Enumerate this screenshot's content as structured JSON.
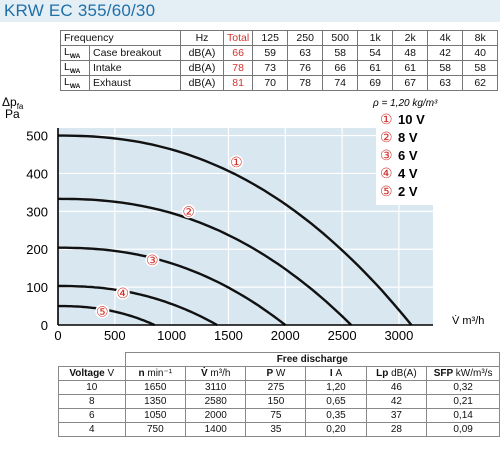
{
  "title": "KRW EC 355/60/30",
  "sound_table": {
    "freq_label": "Frequency",
    "hz_label": "Hz",
    "total_label": "Total",
    "bands": [
      "125",
      "250",
      "500",
      "1k",
      "2k",
      "4k",
      "8k"
    ],
    "lwa_symbol": "L",
    "lwa_sub": "WA",
    "rows": [
      {
        "label": "Case breakout",
        "unit": "dB(A)",
        "total": "66",
        "values": [
          "59",
          "63",
          "58",
          "54",
          "48",
          "42",
          "40"
        ]
      },
      {
        "label": "Intake",
        "unit": "dB(A)",
        "total": "78",
        "values": [
          "73",
          "76",
          "66",
          "61",
          "61",
          "58",
          "58"
        ]
      },
      {
        "label": "Exhaust",
        "unit": "dB(A)",
        "total": "81",
        "values": [
          "70",
          "78",
          "74",
          "69",
          "67",
          "63",
          "62"
        ]
      }
    ]
  },
  "chart_data": {
    "type": "line",
    "ylabel_main": "Δp",
    "ylabel_sub": "fa",
    "ylabel_unit": "Pa",
    "xlabel": "V̇ m³/h",
    "density_note": "ρ = 1,20 kg/m³",
    "xlim": [
      0,
      3300
    ],
    "ylim": [
      0,
      520
    ],
    "xticks": [
      0,
      500,
      1000,
      1500,
      2000,
      2500,
      3000
    ],
    "yticks": [
      0,
      100,
      200,
      300,
      400,
      500
    ],
    "legend": [
      {
        "marker": "①",
        "label": "10 V"
      },
      {
        "marker": "②",
        "label": "8 V"
      },
      {
        "marker": "③",
        "label": "6 V"
      },
      {
        "marker": "④",
        "label": "4 V"
      },
      {
        "marker": "⑤",
        "label": "2 V"
      }
    ],
    "series": [
      {
        "marker": "①",
        "p0": 500,
        "q0": 3110,
        "label_at": [
          1570,
          430
        ]
      },
      {
        "marker": "②",
        "p0": 333,
        "q0": 2580,
        "label_at": [
          1150,
          300
        ]
      },
      {
        "marker": "③",
        "p0": 204,
        "q0": 2000,
        "label_at": [
          830,
          172
        ]
      },
      {
        "marker": "④",
        "p0": 103,
        "q0": 1400,
        "label_at": [
          570,
          85
        ]
      },
      {
        "marker": "⑤",
        "p0": 50,
        "q0": 850,
        "label_at": [
          390,
          36
        ]
      }
    ]
  },
  "discharge_table": {
    "header": "Free discharge",
    "columns": [
      {
        "name": "Voltage",
        "unit": "V"
      },
      {
        "name": "n",
        "unit": "min⁻¹"
      },
      {
        "name": "V̇",
        "unit": "m³/h"
      },
      {
        "name": "P",
        "unit": "W"
      },
      {
        "name": "I",
        "unit": "A"
      },
      {
        "name": "Lp",
        "unit": "dB(A)"
      },
      {
        "name": "SFP",
        "unit": "kW/m³/s"
      }
    ],
    "rows": [
      [
        "10",
        "1650",
        "3110",
        "275",
        "1,20",
        "46",
        "0,32"
      ],
      [
        "8",
        "1350",
        "2580",
        "150",
        "0,65",
        "42",
        "0,21"
      ],
      [
        "6",
        "1050",
        "2000",
        "75",
        "0,35",
        "37",
        "0,14"
      ],
      [
        "4",
        "750",
        "1400",
        "35",
        "0,20",
        "28",
        "0,09"
      ]
    ]
  }
}
